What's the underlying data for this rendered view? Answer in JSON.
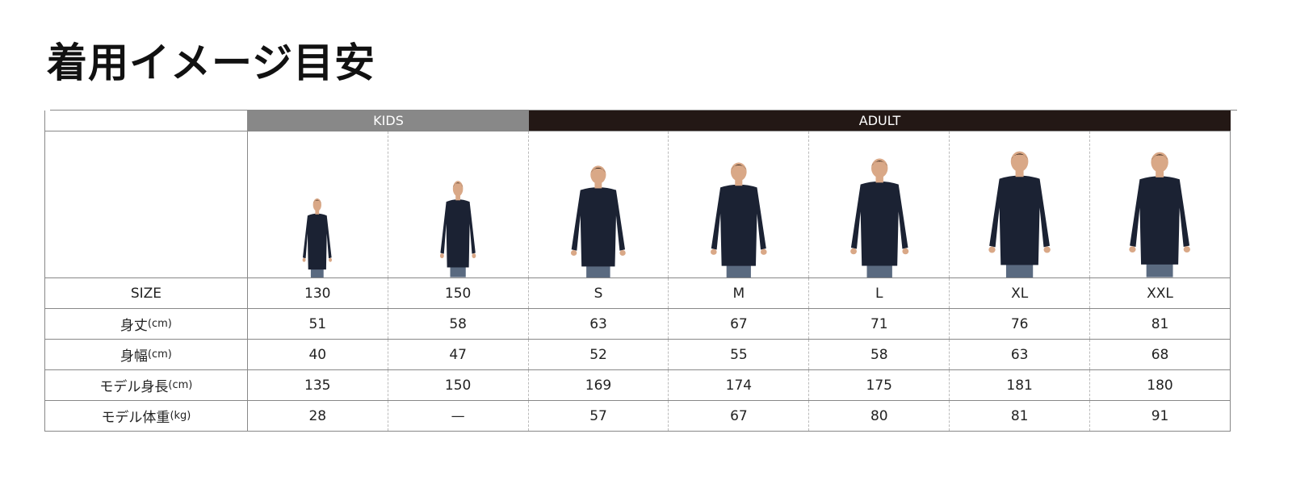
{
  "title": "着用イメージ目安",
  "groups": {
    "kids": "KIDS",
    "adult": "ADULT"
  },
  "sizes": [
    "130",
    "150",
    "S",
    "M",
    "L",
    "XL",
    "XXL"
  ],
  "model_heights_scale": [
    0.55,
    0.67,
    0.78,
    0.8,
    0.83,
    0.88,
    0.87
  ],
  "rows": [
    {
      "label": "SIZE",
      "unit": "",
      "values": [
        "130",
        "150",
        "S",
        "M",
        "L",
        "XL",
        "XXL"
      ]
    },
    {
      "label": "身丈",
      "unit": "(cm)",
      "values": [
        "51",
        "58",
        "63",
        "67",
        "71",
        "76",
        "81"
      ]
    },
    {
      "label": "身幅",
      "unit": "(cm)",
      "values": [
        "40",
        "47",
        "52",
        "55",
        "58",
        "63",
        "68"
      ]
    },
    {
      "label": "モデル身長",
      "unit": "(cm)",
      "values": [
        "135",
        "150",
        "169",
        "174",
        "175",
        "181",
        "180"
      ]
    },
    {
      "label": "モデル体重",
      "unit": "(kg)",
      "values": [
        "28",
        "—",
        "57",
        "67",
        "80",
        "81",
        "91"
      ]
    }
  ],
  "colors": {
    "kids_header": "#888888",
    "adult_header": "#231815",
    "sweatshirt": "#1b2233"
  }
}
